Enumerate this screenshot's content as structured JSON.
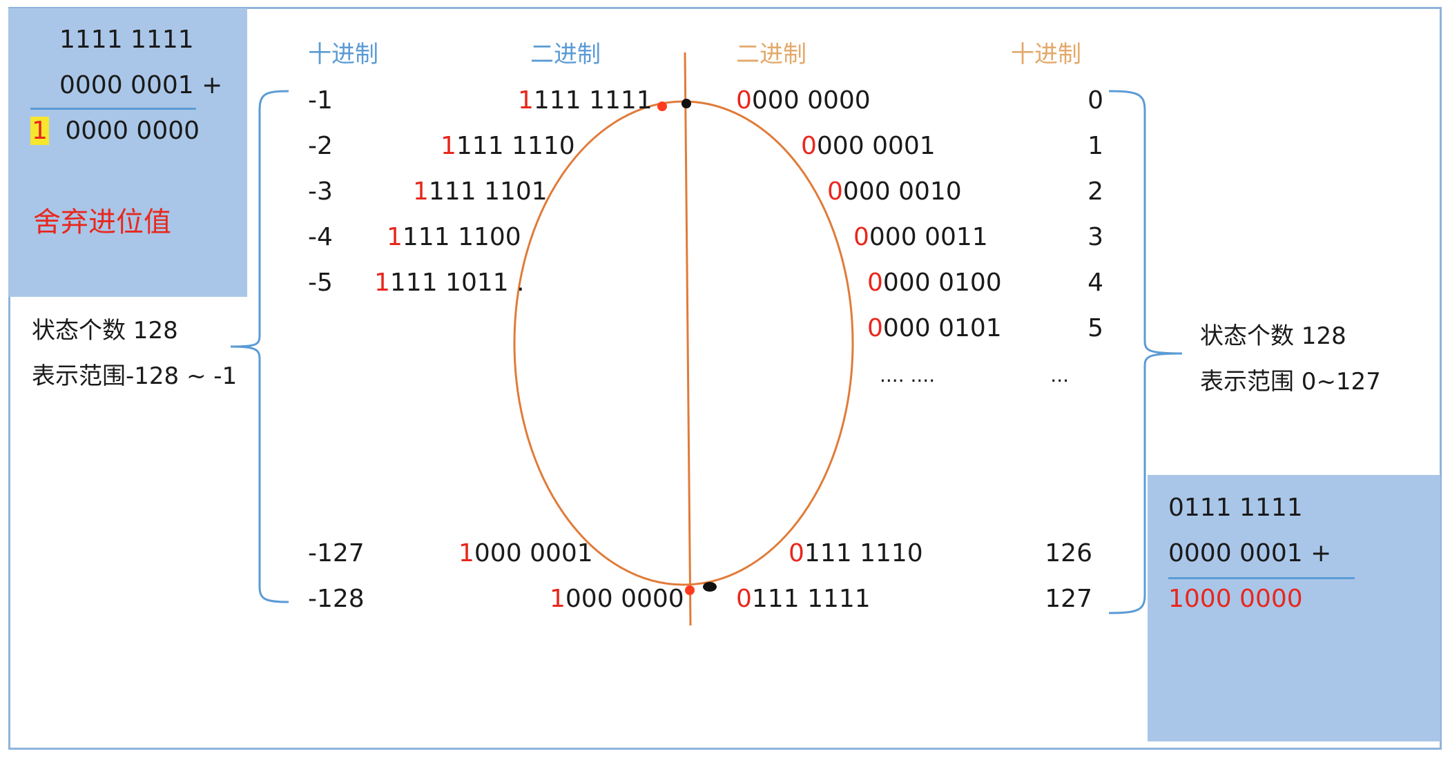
{
  "headers": {
    "left_decimal": "十进制",
    "left_binary": "二进制",
    "right_binary": "二进制",
    "right_decimal": "十进制"
  },
  "carry_box": {
    "line1": "1111 1111",
    "line2": "0000 0001 +",
    "carry_digit": "1",
    "result": "0000 0000",
    "caption": "舍弃进位值"
  },
  "overflow_box": {
    "line1": "0111 1111",
    "line2": "0000 0001 +",
    "result": "1000 0000"
  },
  "negative_summary": {
    "count": "状态个数 128",
    "range": "表示范围-128 ~ -1"
  },
  "positive_summary": {
    "count": "状态个数 128",
    "range": "表示范围 0~127"
  },
  "negative_rows": [
    {
      "dec": "-1",
      "first": "1",
      "rest": "111 1111"
    },
    {
      "dec": "-2",
      "first": "1",
      "rest": "111 1110"
    },
    {
      "dec": "-3",
      "first": "1",
      "rest": "111 1101"
    },
    {
      "dec": "-4",
      "first": "1",
      "rest": "111 1100"
    },
    {
      "dec": "-5",
      "first": "1",
      "rest": "111 1011 ."
    },
    {
      "dec": "-127",
      "first": "1",
      "rest": "000 0001"
    },
    {
      "dec": "-128",
      "first": "1",
      "rest": "000 0000"
    }
  ],
  "positive_rows": [
    {
      "dec": "0",
      "first": "0",
      "rest": "000 0000"
    },
    {
      "dec": "1",
      "first": "0",
      "rest": "000 0001"
    },
    {
      "dec": "2",
      "first": "0",
      "rest": "000 0010"
    },
    {
      "dec": "3",
      "first": "0",
      "rest": "000 0011"
    },
    {
      "dec": "4",
      "first": "0",
      "rest": "000 0100"
    },
    {
      "dec": "5",
      "first": "0",
      "rest": "000 0101"
    },
    {
      "dec": "...",
      "first": "",
      "rest": ".... ...."
    },
    {
      "dec": "126",
      "first": "0",
      "rest": "111 1110"
    },
    {
      "dec": "127",
      "first": "0",
      "rest": "111 1111"
    }
  ],
  "colors": {
    "box": "#a9c6e8",
    "header_left": "#5b9bd5",
    "header_right": "#e3a96a",
    "accent": "#e8271d",
    "ellipse": "#e07b39",
    "brace": "#5b9bd5"
  }
}
